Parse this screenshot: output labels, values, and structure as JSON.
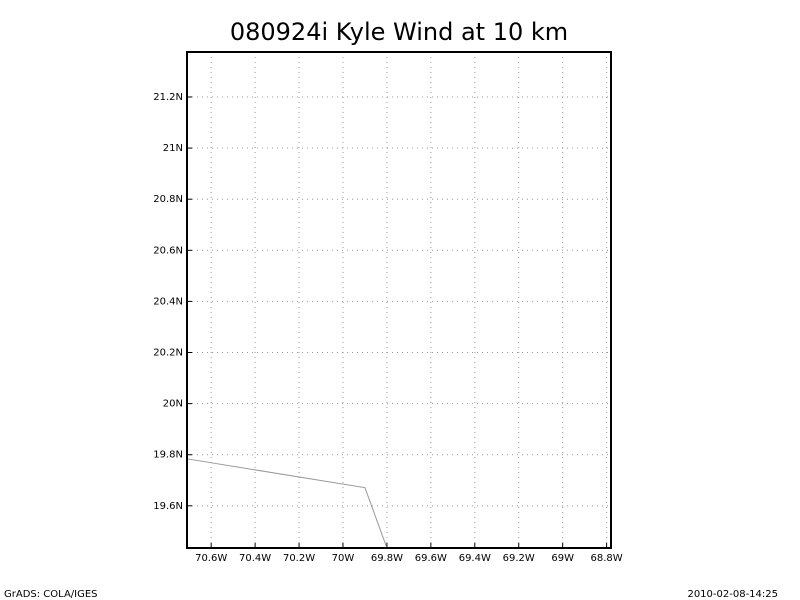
{
  "chart_data": {
    "type": "line",
    "title": "080924i Kyle Wind at 10 km",
    "footer_left": "GrADS: COLA/IGES",
    "footer_right": "2010-02-08-14:25",
    "x": [
      -70.71,
      -69.9,
      -69.8
    ],
    "series": [
      {
        "color": "#999999",
        "values": [
          19.784,
          19.671,
          19.435
        ]
      }
    ],
    "xlim": [
      -70.71,
      -68.78
    ],
    "ylim": [
      19.435,
      21.376
    ],
    "xticks": [
      {
        "value": -70.6,
        "label": "70.6W"
      },
      {
        "value": -70.4,
        "label": "70.4W"
      },
      {
        "value": -70.2,
        "label": "70.2W"
      },
      {
        "value": -70,
        "label": "70W"
      },
      {
        "value": -69.8,
        "label": "69.8W"
      },
      {
        "value": -69.6,
        "label": "69.6W"
      },
      {
        "value": -69.4,
        "label": "69.4W"
      },
      {
        "value": -69.2,
        "label": "69.2W"
      },
      {
        "value": -69,
        "label": "69W"
      },
      {
        "value": -68.8,
        "label": "68.8W"
      }
    ],
    "yticks": [
      {
        "value": 19.6,
        "label": "19.6N"
      },
      {
        "value": 19.8,
        "label": "19.8N"
      },
      {
        "value": 20,
        "label": "20N"
      },
      {
        "value": 20.2,
        "label": "20.2N"
      },
      {
        "value": 20.4,
        "label": "20.4N"
      },
      {
        "value": 20.6,
        "label": "20.6N"
      },
      {
        "value": 20.8,
        "label": "20.8N"
      },
      {
        "value": 21,
        "label": "21N"
      },
      {
        "value": 21.2,
        "label": "21.2N"
      }
    ],
    "grid": true
  }
}
